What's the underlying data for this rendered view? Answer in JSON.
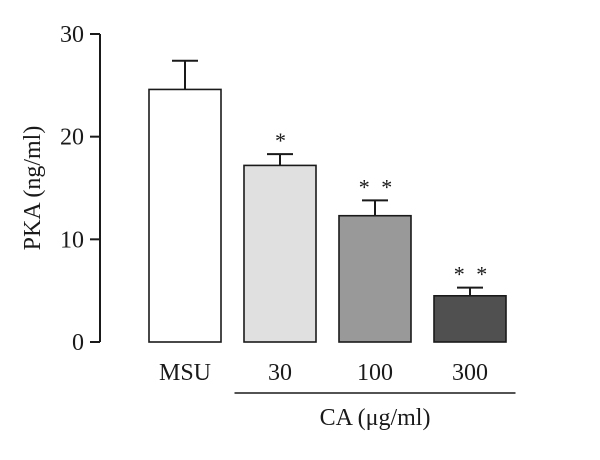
{
  "chart_data": {
    "type": "bar",
    "title": "",
    "ylabel": "PKA (ng/ml)",
    "xlabel": "",
    "ylim": [
      0,
      30
    ],
    "yticks": [
      0,
      10,
      20,
      30
    ],
    "categories": [
      "MSU",
      "30",
      "100",
      "300"
    ],
    "values": [
      24.6,
      17.2,
      12.3,
      4.5
    ],
    "errors": [
      2.8,
      1.1,
      1.5,
      0.8
    ],
    "significance": [
      "",
      "*",
      "* *",
      "* *"
    ],
    "bar_colors": [
      "#ffffff",
      "#e0e0e0",
      "#999999",
      "#505050"
    ],
    "group_label": {
      "text": "CA (μg/ml)",
      "applies_to": [
        "30",
        "100",
        "300"
      ]
    },
    "grid": false,
    "legend": "none"
  }
}
